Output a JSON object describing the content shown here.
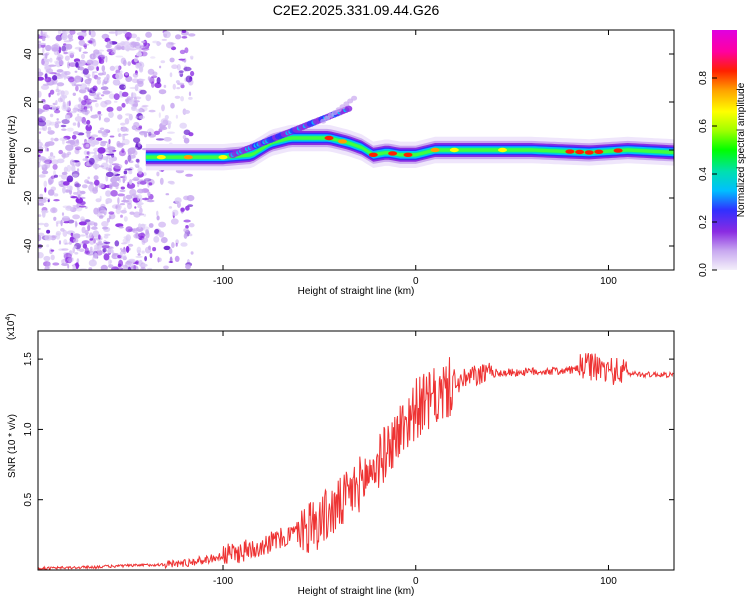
{
  "title": "C2E2.2025.331.09.44.G26",
  "chart_data": [
    {
      "type": "heatmap",
      "xlabel": "Height of straight line (km)",
      "ylabel": "Frequency (Hz)",
      "xlim": [
        -196,
        134
      ],
      "ylim": [
        -50,
        50
      ],
      "xticks": [
        -100,
        0,
        100
      ],
      "yticks": [
        -40,
        -20,
        0,
        20,
        40
      ],
      "ridge": {
        "x": [
          -140,
          -120,
          -100,
          -85,
          -75,
          -65,
          -55,
          -45,
          -35,
          -28,
          -22,
          -15,
          -8,
          0,
          10,
          30,
          60,
          90,
          110,
          134
        ],
        "freq": [
          -3,
          -3,
          -3,
          -2,
          3,
          5,
          5,
          5,
          3,
          1,
          -2,
          -1,
          -2,
          -2,
          0,
          0,
          0,
          -1,
          0,
          -1
        ]
      },
      "colorbar": {
        "label": "Normalized spectral amplitude",
        "range": [
          0,
          1
        ],
        "ticks": [
          "0.0",
          "0.2",
          "0.4",
          "0.6",
          "0.8"
        ],
        "colors": [
          "#f4f0fa",
          "#c8a8f0",
          "#8a2be2",
          "#3030ff",
          "#00bfff",
          "#00e0b0",
          "#00ff00",
          "#a0ff00",
          "#ffff00",
          "#ffa000",
          "#ff2000",
          "#ff00a0",
          "#e000e0"
        ]
      }
    },
    {
      "type": "line",
      "xlabel": "Height of straight line (km)",
      "ylabel": "SNR (10 * v/v)",
      "multiplier": "(x10",
      "multiplier_exp": "4",
      "multiplier_close": ")",
      "xlim": [
        -196,
        134
      ],
      "ylim": [
        0,
        1.7
      ],
      "xticks": [
        -100,
        0,
        100
      ],
      "yticks": [
        0.5,
        1.0,
        1.5
      ],
      "ytick_labels": [
        "0.5",
        "1.0",
        "1.5"
      ],
      "series": [
        {
          "name": "SNR",
          "color": "#ee3333",
          "x": [
            -196,
            -170,
            -150,
            -130,
            -120,
            -110,
            -100,
            -90,
            -80,
            -70,
            -60,
            -50,
            -40,
            -30,
            -20,
            -15,
            -10,
            -5,
            0,
            10,
            20,
            30,
            40,
            60,
            80,
            90,
            100,
            110,
            120,
            134
          ],
          "y": [
            0.01,
            0.02,
            0.03,
            0.04,
            0.05,
            0.07,
            0.1,
            0.13,
            0.18,
            0.22,
            0.28,
            0.35,
            0.45,
            0.6,
            0.75,
            0.85,
            0.95,
            1.05,
            1.15,
            1.22,
            1.32,
            1.38,
            1.4,
            1.41,
            1.42,
            1.45,
            1.42,
            1.4,
            1.39,
            1.39
          ]
        }
      ]
    }
  ]
}
